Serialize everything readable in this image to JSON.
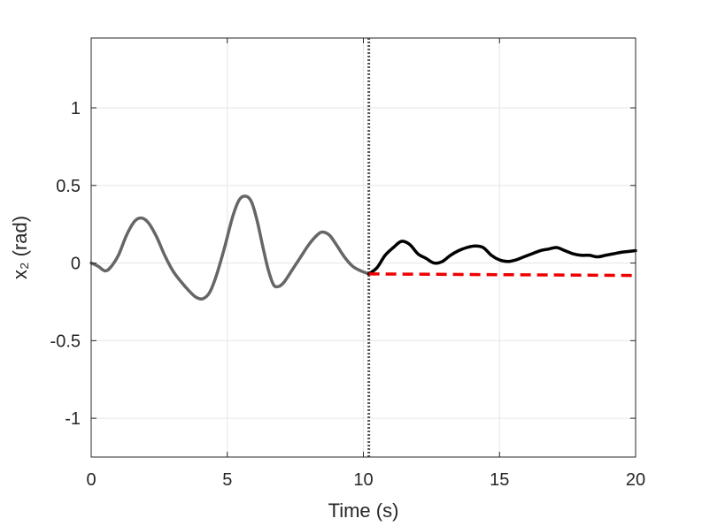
{
  "chart_data": {
    "type": "line",
    "title": "",
    "xlabel": "Time (s)",
    "ylabel": "x₂ (rad)",
    "xlim": [
      0,
      20
    ],
    "ylim": [
      -1.25,
      1.45
    ],
    "xticks": [
      0,
      5,
      10,
      15,
      20
    ],
    "xtick_labels": [
      "0",
      "5",
      "10",
      "15",
      "20"
    ],
    "yticks": [
      -1,
      -0.5,
      0,
      0.5,
      1
    ],
    "ytick_labels": [
      "-1",
      "-0.5",
      "0",
      "0.5",
      "1"
    ],
    "grid": true,
    "legend": "none",
    "vline": {
      "x": 10.2,
      "style": "dotted",
      "color": "#555555"
    },
    "series": [
      {
        "style": "solid",
        "color": "#666666",
        "x": [
          0,
          0.25,
          0.5,
          0.7,
          1.0,
          1.3,
          1.6,
          1.85,
          2.1,
          2.4,
          2.7,
          3.0,
          3.3,
          3.6,
          3.85,
          4.1,
          4.35,
          4.6,
          4.9,
          5.2,
          5.45,
          5.7,
          5.9,
          6.1,
          6.3,
          6.5,
          6.7,
          6.9,
          7.1,
          7.4,
          7.7,
          8.0,
          8.3,
          8.5,
          8.75,
          9.0,
          9.3,
          9.6,
          9.9,
          10.2
        ],
        "y": [
          0,
          -0.02,
          -0.05,
          -0.03,
          0.05,
          0.18,
          0.27,
          0.29,
          0.26,
          0.17,
          0.05,
          -0.05,
          -0.12,
          -0.18,
          -0.22,
          -0.23,
          -0.19,
          -0.08,
          0.1,
          0.3,
          0.41,
          0.43,
          0.39,
          0.27,
          0.11,
          -0.04,
          -0.14,
          -0.15,
          -0.12,
          -0.04,
          0.04,
          0.12,
          0.18,
          0.2,
          0.18,
          0.12,
          0.04,
          -0.02,
          -0.05,
          -0.07
        ]
      },
      {
        "style": "solid",
        "color": "#000000",
        "x": [
          10.2,
          10.5,
          10.8,
          11.1,
          11.4,
          11.7,
          12.0,
          12.3,
          12.6,
          12.9,
          13.2,
          13.5,
          13.8,
          14.1,
          14.4,
          14.7,
          15.0,
          15.3,
          15.6,
          15.9,
          16.2,
          16.5,
          16.8,
          17.1,
          17.4,
          17.7,
          18.0,
          18.3,
          18.6,
          18.9,
          19.2,
          19.5,
          20.0
        ],
        "y": [
          -0.07,
          -0.03,
          0.05,
          0.1,
          0.14,
          0.12,
          0.06,
          0.03,
          0.0,
          0.01,
          0.05,
          0.08,
          0.1,
          0.11,
          0.1,
          0.05,
          0.02,
          0.01,
          0.02,
          0.04,
          0.06,
          0.08,
          0.09,
          0.1,
          0.08,
          0.06,
          0.05,
          0.05,
          0.04,
          0.05,
          0.06,
          0.07,
          0.08
        ]
      },
      {
        "style": "dashed",
        "color": "#ee0000",
        "x": [
          10.2,
          20.0
        ],
        "y": [
          -0.07,
          -0.08
        ]
      }
    ]
  }
}
